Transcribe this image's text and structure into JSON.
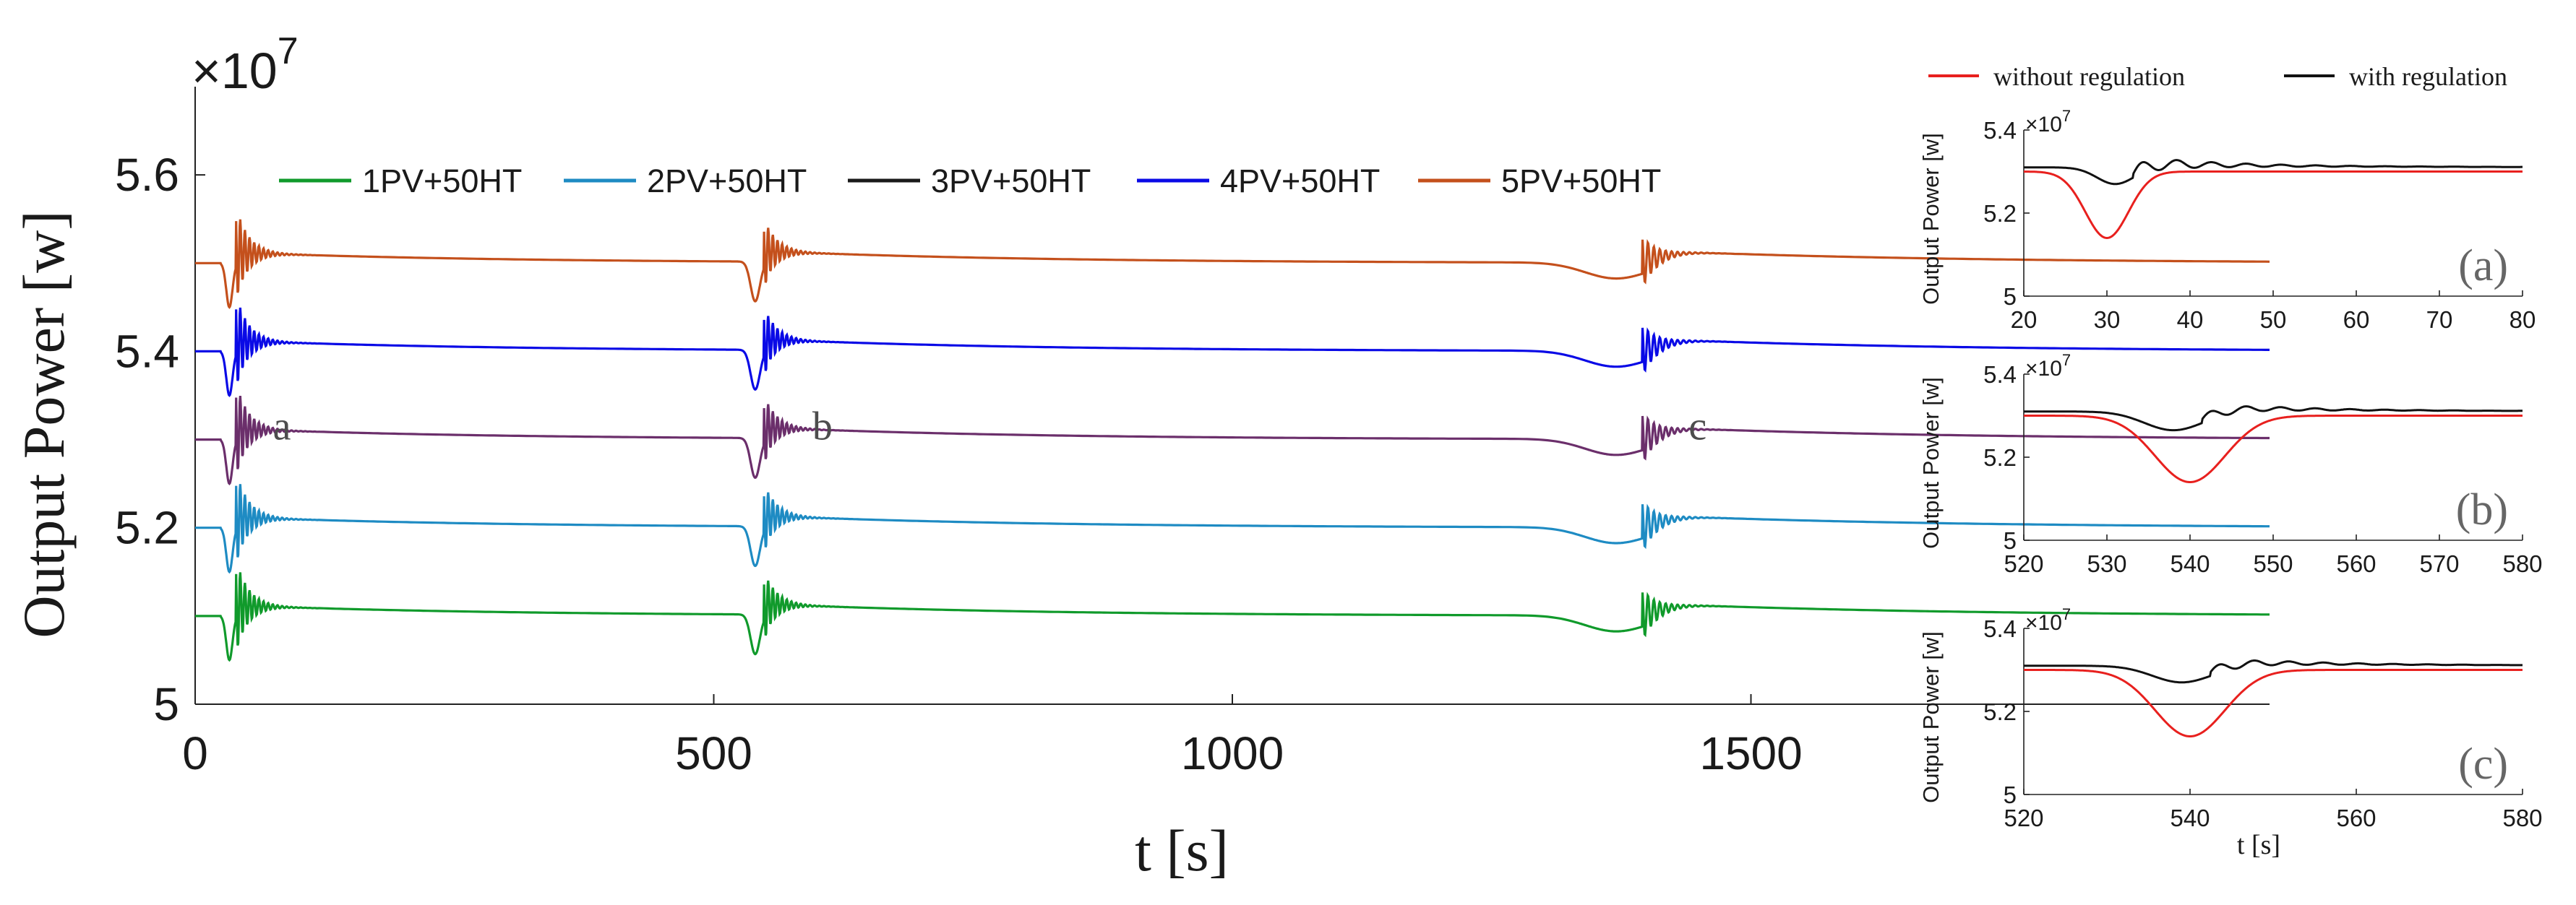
{
  "chart_data": [
    {
      "type": "line",
      "title": "",
      "xlabel": "t [s]",
      "ylabel": "Output Power [w]",
      "y_multiplier": "×10",
      "y_multiplier_exp": "7",
      "xlim": [
        0,
        2000
      ],
      "ylim": [
        5.0,
        5.7
      ],
      "xticks": [
        0,
        500,
        1000,
        1500
      ],
      "xtick_labels": [
        "0",
        "500",
        "1000",
        "1500"
      ],
      "yticks": [
        5.0,
        5.2,
        5.4,
        5.6
      ],
      "ytick_labels": [
        "5",
        "5.2",
        "5.4",
        "5.6"
      ],
      "legend_position": "top",
      "events_t": [
        25,
        535,
        1370
      ],
      "point_labels": [
        {
          "text": "a",
          "t": 75,
          "y": 5.3
        },
        {
          "text": "b",
          "t": 595,
          "y": 5.3
        },
        {
          "text": "c",
          "t": 1440,
          "y": 5.3
        }
      ],
      "series": [
        {
          "name": "1PV+50HT",
          "color": "#109A2B",
          "base": 5.1
        },
        {
          "name": "2PV+50HT",
          "color": "#1E8BC3",
          "base": 5.2
        },
        {
          "name": "3PV+50HT",
          "color": "#1A1A1A",
          "base": 5.3,
          "legend_only": true
        },
        {
          "name": "4PV+50HT",
          "color": "#0A0AE6",
          "base": 5.4
        },
        {
          "name": "5PV+50HT",
          "color": "#C4501C",
          "base": 5.5
        },
        {
          "name": "3PV+50HT (plotted)",
          "color": "#6B2F6B",
          "base": 5.3,
          "plot_only": true
        }
      ]
    },
    {
      "type": "line",
      "panel_label": "(a)",
      "xlabel": "",
      "ylabel": "Output Power [w]",
      "y_multiplier": "×10",
      "y_multiplier_exp": "7",
      "xlim": [
        20,
        80
      ],
      "ylim": [
        5.0,
        5.4
      ],
      "xticks": [
        20,
        30,
        40,
        50,
        60,
        70,
        80
      ],
      "yticks": [
        5.0,
        5.2,
        5.4
      ],
      "ytick_labels": [
        "5",
        "5.2",
        "5.4"
      ],
      "series": [
        {
          "name": "without regulation",
          "color": "#E8201E",
          "base": 5.3,
          "dip_t": 30,
          "dip": 0.16,
          "width": 2.6,
          "wiggle": 0
        },
        {
          "name": "with regulation",
          "color": "#111111",
          "base": 5.31,
          "dip_t": 31,
          "dip": 0.04,
          "width": 2.2,
          "wiggle": 0.018
        }
      ]
    },
    {
      "type": "line",
      "panel_label": "(b)",
      "xlabel": "",
      "ylabel": "Output Power [w]",
      "y_multiplier": "×10",
      "y_multiplier_exp": "7",
      "xlim": [
        520,
        580
      ],
      "ylim": [
        5.0,
        5.4
      ],
      "xticks": [
        520,
        530,
        540,
        550,
        560,
        570,
        580
      ],
      "yticks": [
        5.0,
        5.2,
        5.4
      ],
      "ytick_labels": [
        "5",
        "5.2",
        "5.4"
      ],
      "series": [
        {
          "name": "without regulation",
          "color": "#E8201E",
          "base": 5.3,
          "dip_t": 540,
          "dip": 0.16,
          "width": 4.2,
          "wiggle": 0
        },
        {
          "name": "with regulation",
          "color": "#111111",
          "base": 5.31,
          "dip_t": 538,
          "dip": 0.045,
          "width": 3.5,
          "wiggle": 0.012
        }
      ]
    },
    {
      "type": "line",
      "panel_label": "(c)",
      "xlabel": "t [s]",
      "ylabel": "Output Power [w]",
      "y_multiplier": "×10",
      "y_multiplier_exp": "7",
      "xlim": [
        520,
        580
      ],
      "ylim": [
        5.0,
        5.4
      ],
      "xticks": [
        520,
        540,
        560,
        580
      ],
      "yticks": [
        5.0,
        5.2,
        5.4
      ],
      "ytick_labels": [
        "5",
        "5.2",
        "5.4"
      ],
      "series": [
        {
          "name": "without regulation",
          "color": "#E8201E",
          "base": 5.3,
          "dip_t": 540,
          "dip": 0.16,
          "width": 4.2,
          "wiggle": 0
        },
        {
          "name": "with regulation",
          "color": "#111111",
          "base": 5.31,
          "dip_t": 539,
          "dip": 0.04,
          "width": 3.5,
          "wiggle": 0.012
        }
      ]
    }
  ],
  "sub_legend": [
    {
      "name": "without regulation",
      "color": "#E8201E"
    },
    {
      "name": "with regulation",
      "color": "#111111"
    }
  ]
}
